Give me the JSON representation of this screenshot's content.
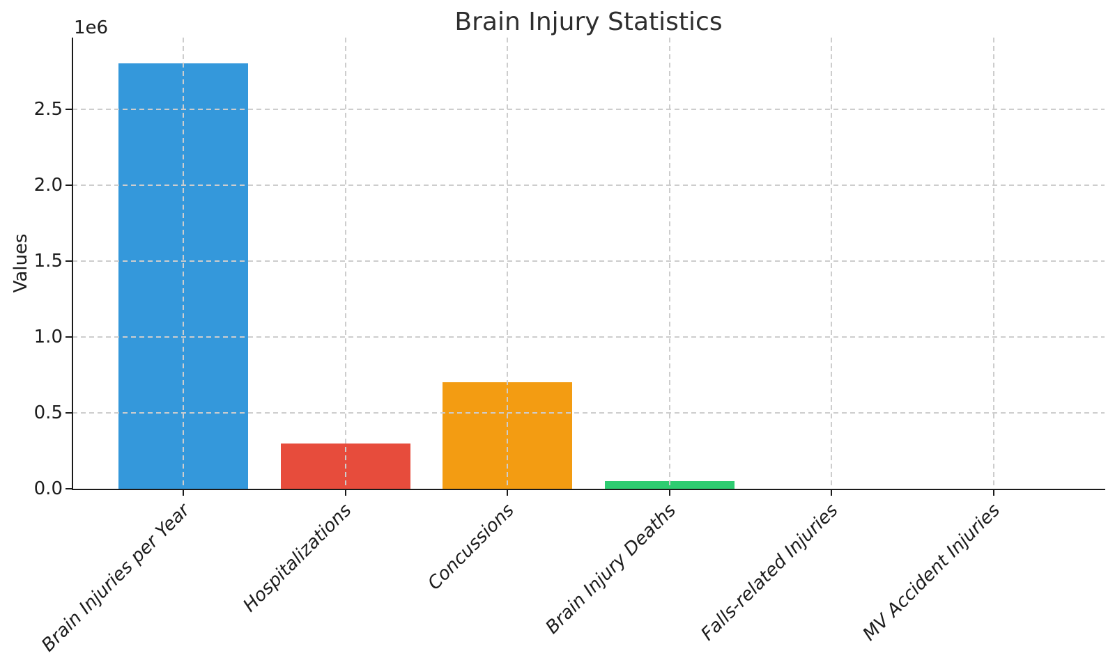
{
  "chart_data": {
    "type": "bar",
    "title": "Brain Injury Statistics",
    "xlabel": "",
    "ylabel": "Values",
    "offset_text": "1e6",
    "categories": [
      "Brain Injuries per Year",
      "Hospitalizations",
      "Concussions",
      "Brain Injury Deaths",
      "Falls-related Injuries",
      "MV Accident Injuries"
    ],
    "values": [
      2800000,
      300000,
      700000,
      50000,
      0,
      0
    ],
    "bar_colors": [
      "#3498db",
      "#e74c3c",
      "#f39c12",
      "#2ecc71",
      null,
      null
    ],
    "ylim": [
      0,
      2970000
    ],
    "yticks": [
      0,
      500000,
      1000000,
      1500000,
      2000000,
      2500000
    ],
    "ytick_labels": [
      "0.0",
      "0.5",
      "1.0",
      "1.5",
      "2.0",
      "2.5"
    ],
    "grid": "dashed gridlines on both axes, drawn above bars",
    "legend": false,
    "xtick_label_style": "italic, rotated 45 degrees",
    "colors": {
      "axis": "#1a1a1a",
      "grid": "#cdcdcd",
      "title_text": "#2e2e2e",
      "tick_text": "#1c1c1c",
      "background": "#ffffff"
    }
  }
}
